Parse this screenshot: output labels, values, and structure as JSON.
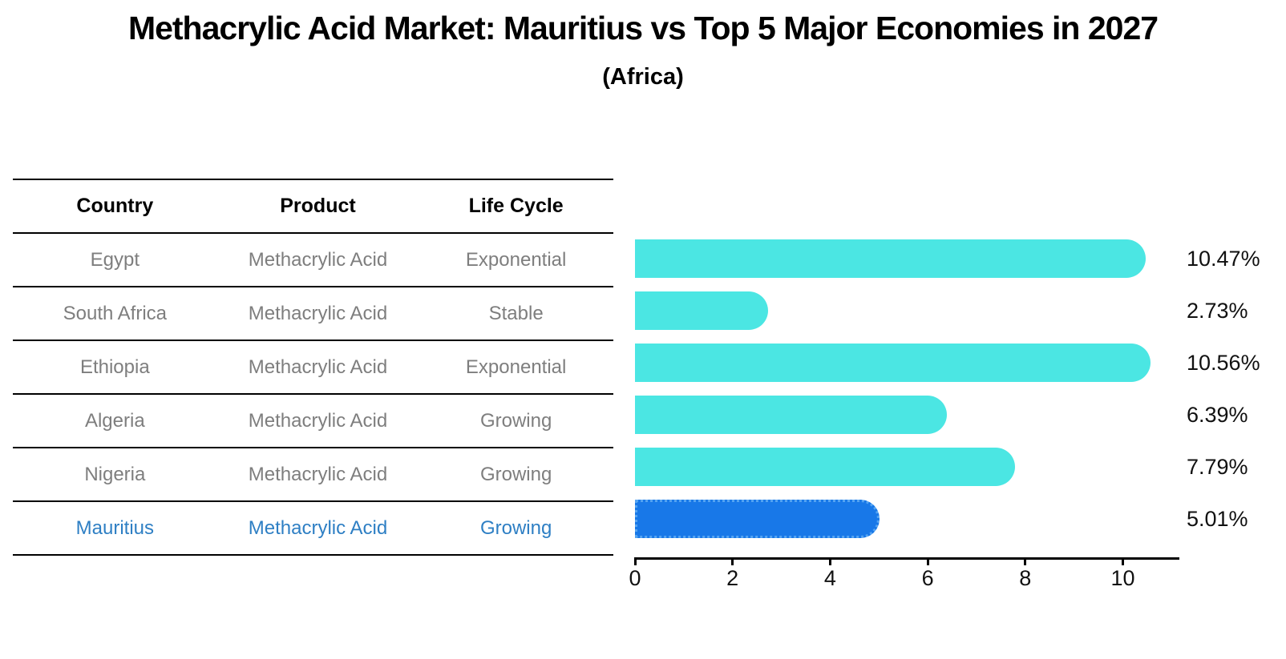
{
  "page": {
    "title": "Methacrylic Acid Market: Mauritius vs Top 5 Major Economies in 2027",
    "subtitle": "(Africa)"
  },
  "table": {
    "headers": {
      "country": "Country",
      "product": "Product",
      "life_cycle": "Life Cycle"
    },
    "rows": [
      {
        "country": "Egypt",
        "product": "Methacrylic Acid",
        "life_cycle": "Exponential",
        "highlight": false
      },
      {
        "country": "South Africa",
        "product": "Methacrylic Acid",
        "life_cycle": "Stable",
        "highlight": false
      },
      {
        "country": "Ethiopia",
        "product": "Methacrylic Acid",
        "life_cycle": "Exponential",
        "highlight": false
      },
      {
        "country": "Algeria",
        "product": "Methacrylic Acid",
        "life_cycle": "Growing",
        "highlight": false
      },
      {
        "country": "Nigeria",
        "product": "Methacrylic Acid",
        "life_cycle": "Growing",
        "highlight": false
      },
      {
        "country": "Mauritius",
        "product": "Methacrylic Acid",
        "life_cycle": "Growing",
        "highlight": true
      }
    ]
  },
  "chart_data": {
    "type": "bar",
    "orientation": "horizontal",
    "title": "Methacrylic Acid Market: Mauritius vs Top 5 Major Economies in 2027",
    "subtitle": "(Africa)",
    "categories": [
      "Egypt",
      "South Africa",
      "Ethiopia",
      "Algeria",
      "Nigeria",
      "Mauritius"
    ],
    "values": [
      10.47,
      2.73,
      10.56,
      6.39,
      7.79,
      5.01
    ],
    "value_labels": [
      "10.47%",
      "2.73%",
      "10.56%",
      "6.39%",
      "7.79%",
      "5.01%"
    ],
    "x_ticks": [
      0,
      2,
      4,
      6,
      8,
      10
    ],
    "xlim": [
      0,
      11.15
    ],
    "grid": false,
    "legend": "none",
    "bar_color": "#4be6e3",
    "highlight_bar_color": "#1878e8",
    "highlight_border_color": "#55a4f2",
    "highlight_text_color": "#2e7fc4",
    "highlight_index": 5
  }
}
